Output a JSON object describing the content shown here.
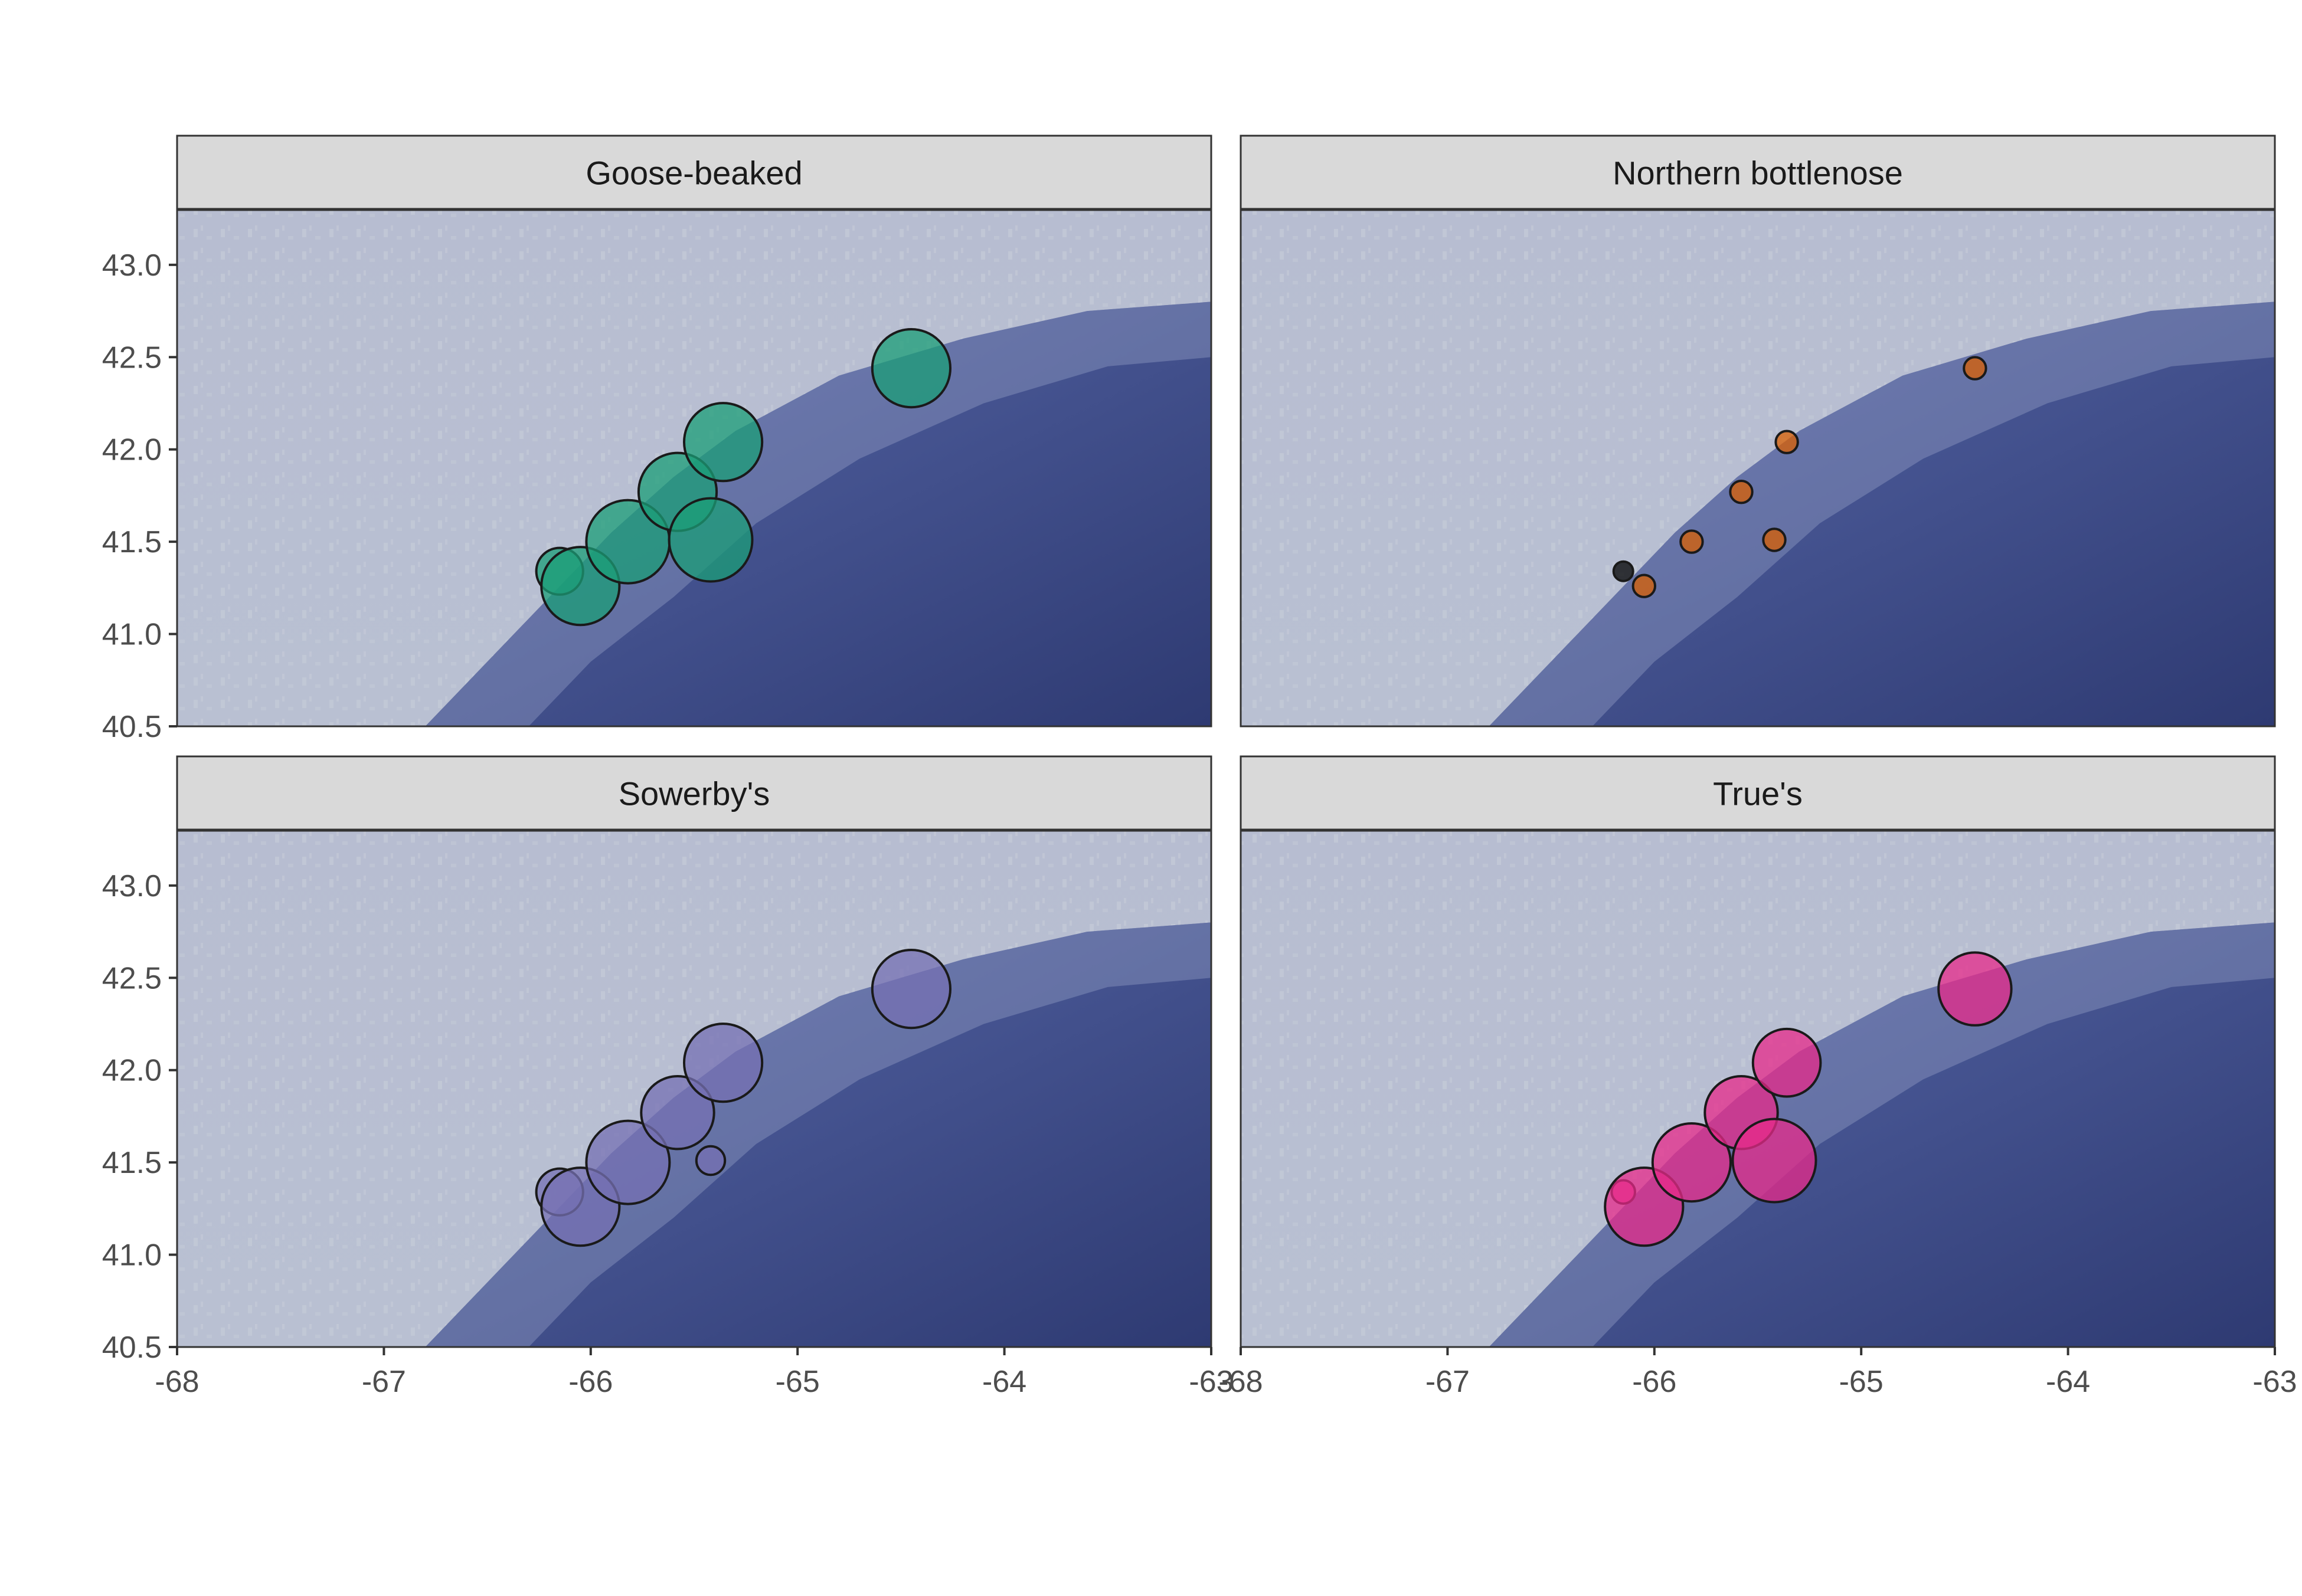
{
  "chart_data": {
    "type": "scatter",
    "title": "",
    "xlabel": "",
    "ylabel": "",
    "xlim": [
      -68,
      -63
    ],
    "ylim": [
      40.5,
      43.3
    ],
    "x_ticks": [
      -68,
      -67,
      -66,
      -65,
      -64,
      -63
    ],
    "x_tick_labels": [
      "-68",
      "-67",
      "-66",
      "-65",
      "-64",
      "-63"
    ],
    "y_ticks": [
      40.5,
      41.0,
      41.5,
      42.0,
      42.5,
      43.0
    ],
    "y_tick_labels": [
      "40.5",
      "41.0",
      "41.5",
      "42.0",
      "42.5",
      "43.0"
    ],
    "grid": false,
    "legend": "none",
    "background": "bathymetry map, light shelf to dark deep water",
    "sites": [
      {
        "lon": -66.15,
        "lat": 41.34
      },
      {
        "lon": -66.05,
        "lat": 41.26
      },
      {
        "lon": -65.82,
        "lat": 41.5
      },
      {
        "lon": -65.58,
        "lat": 41.77
      },
      {
        "lon": -65.42,
        "lat": 41.51
      },
      {
        "lon": -65.36,
        "lat": 42.04
      },
      {
        "lon": -64.45,
        "lat": 42.44
      }
    ],
    "panels": [
      {
        "name": "Goose-beaked",
        "color": "#1b9e77",
        "sizes": [
          0.18,
          0.3,
          0.32,
          0.3,
          0.32,
          0.3,
          0.3
        ]
      },
      {
        "name": "Northern bottlenose",
        "color": "#d95f02",
        "sizes": [
          0.075,
          0.085,
          0.085,
          0.085,
          0.085,
          0.085,
          0.085
        ],
        "highlight": {
          "site": 0,
          "color": "#000000"
        }
      },
      {
        "name": "Sowerby's",
        "color": "#7570b3",
        "sizes": [
          0.18,
          0.3,
          0.32,
          0.28,
          0.11,
          0.3,
          0.3
        ]
      },
      {
        "name": "True's",
        "color": "#e7298a",
        "sizes": [
          0.09,
          0.3,
          0.3,
          0.28,
          0.32,
          0.26,
          0.28
        ]
      }
    ]
  }
}
